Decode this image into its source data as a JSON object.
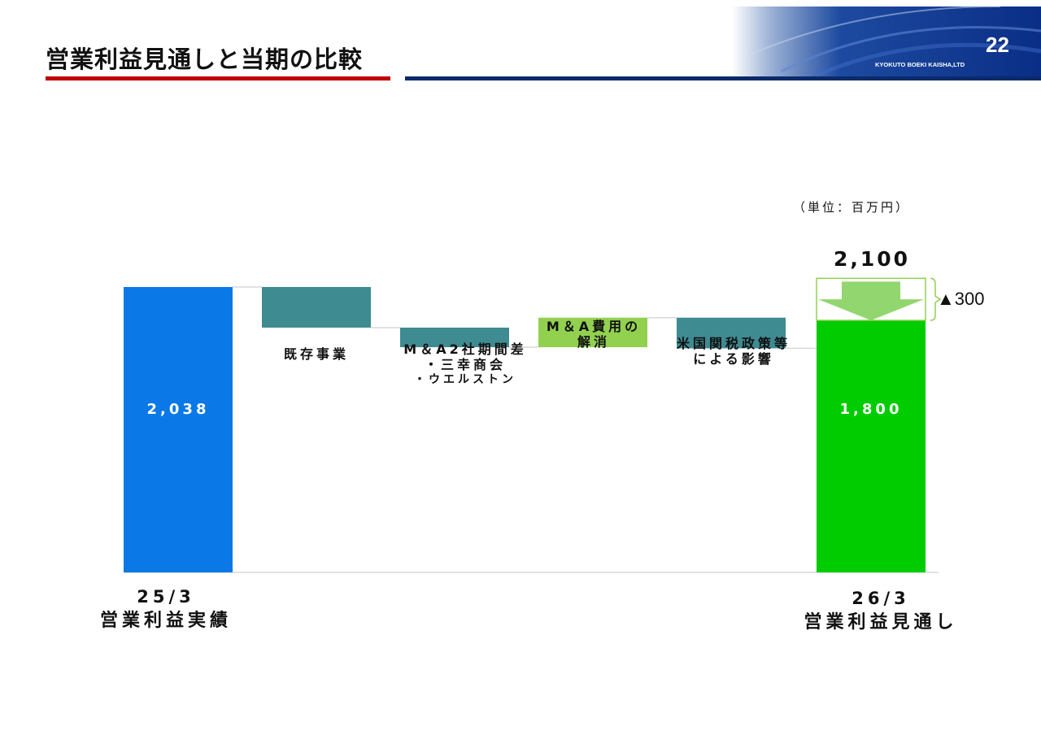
{
  "slide": {
    "title": "営業利益見通しと当期の比較",
    "page_number": "22",
    "company": "KYOKUTO BOEKI KAISHA,LTD",
    "unit": "（単位：百万円）"
  },
  "colors": {
    "start_bar": "#0a78e6",
    "end_bar": "#00cc00",
    "decrease": "#3e8b91",
    "increase": "#92d050",
    "arrow": "#92d66f",
    "title_rule_red": "#c00000",
    "title_rule_blue": "#0a2a6a"
  },
  "chart_data": {
    "type": "bar",
    "subtype": "waterfall",
    "unit": "百万円",
    "start": {
      "label": "25/3",
      "sublabel": "営業利益実績",
      "value": 2038,
      "value_label": "2,038"
    },
    "steps": [
      {
        "label_lines": [
          "既存事業"
        ],
        "direction": "decrease"
      },
      {
        "label_lines": [
          "M＆A2社期間差",
          "・三幸商会",
          "・ウエルストン"
        ],
        "direction": "decrease"
      },
      {
        "label_lines": [
          "M＆A費用の",
          "解消"
        ],
        "direction": "increase"
      },
      {
        "label_lines": [
          "米国関税政策等",
          "による影響"
        ],
        "direction": "decrease"
      }
    ],
    "end": {
      "label": "26/3",
      "sublabel": "営業利益見通し",
      "value": 1800,
      "value_label": "1,800"
    },
    "plan": {
      "value": 2100,
      "value_label": "2,100"
    },
    "difference": {
      "value": -300,
      "label": "▲300"
    },
    "grid": false,
    "legend": "none"
  }
}
